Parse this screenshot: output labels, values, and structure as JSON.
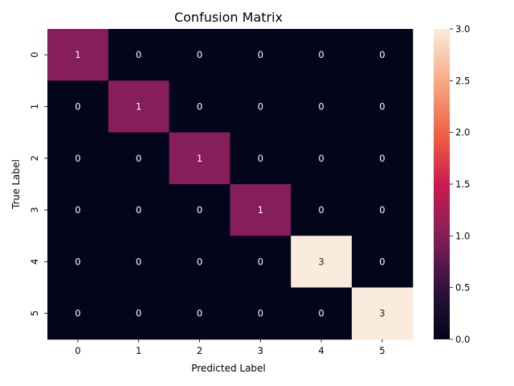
{
  "chart_data": {
    "type": "heatmap",
    "title": "Confusion Matrix",
    "xlabel": "Predicted Label",
    "ylabel": "True Label",
    "x_categories": [
      "0",
      "1",
      "2",
      "3",
      "4",
      "5"
    ],
    "y_categories": [
      "0",
      "1",
      "2",
      "3",
      "4",
      "5"
    ],
    "values": [
      [
        1,
        0,
        0,
        0,
        0,
        0
      ],
      [
        0,
        1,
        0,
        0,
        0,
        0
      ],
      [
        0,
        0,
        1,
        0,
        0,
        0
      ],
      [
        0,
        0,
        0,
        1,
        0,
        0
      ],
      [
        0,
        0,
        0,
        0,
        3,
        0
      ],
      [
        0,
        0,
        0,
        0,
        0,
        3
      ]
    ],
    "colorbar": {
      "range": [
        0,
        3
      ],
      "ticks": [
        "0.0",
        "0.5",
        "1.0",
        "1.5",
        "2.0",
        "2.5",
        "3.0"
      ],
      "colormap": "rocket"
    },
    "colors": {
      "low": "#03051a",
      "mid": "#841e5a",
      "high": "#faebdd"
    }
  }
}
